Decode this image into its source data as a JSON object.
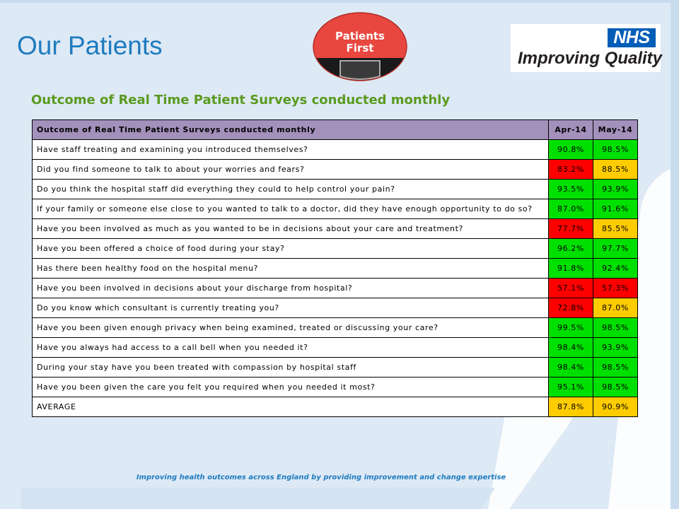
{
  "page": {
    "title": "Our Patients"
  },
  "logo": {
    "line1": "Patients",
    "line2": "First"
  },
  "nhs": {
    "badge": "NHS",
    "tagline": "Improving Quality"
  },
  "subtitle": "Outcome of Real Time Patient Surveys conducted monthly",
  "table": {
    "header": {
      "question": "Outcome of Real Time Patient Surveys conducted monthly",
      "col1": "Apr-14",
      "col2": "May-14"
    },
    "status_colors": {
      "green": "#00e000",
      "red": "#ff0000",
      "amber": "#ffcc00"
    },
    "rows": [
      {
        "question": "Have staff treating and examining you introduced themselves?",
        "apr": "90.8%",
        "apr_status": "green",
        "may": "98.5%",
        "may_status": "green"
      },
      {
        "question": "Did you find someone to talk to about your worries and fears?",
        "apr": "83.2%",
        "apr_status": "red",
        "may": "88.5%",
        "may_status": "amber"
      },
      {
        "question": "Do you think the hospital staff did everything they could to help control your pain?",
        "apr": "93.5%",
        "apr_status": "green",
        "may": "93.9%",
        "may_status": "green"
      },
      {
        "question": "If your family or someone else close to you wanted to talk to a doctor, did they have enough opportunity to do so?",
        "apr": "87.0%",
        "apr_status": "green",
        "may": "91.6%",
        "may_status": "green"
      },
      {
        "question": "Have you been involved as much as you wanted to be in decisions about your care and treatment?",
        "apr": "77.7%",
        "apr_status": "red",
        "may": "85.5%",
        "may_status": "amber"
      },
      {
        "question": "Have you been offered a choice of food during your stay?",
        "apr": "96.2%",
        "apr_status": "green",
        "may": "97.7%",
        "may_status": "green"
      },
      {
        "question": "Has there been healthy food on the hospital menu?",
        "apr": "91.8%",
        "apr_status": "green",
        "may": "92.4%",
        "may_status": "green"
      },
      {
        "question": "Have you been involved in decisions about your discharge from hospital?",
        "apr": "57.1%",
        "apr_status": "red",
        "may": "57.3%",
        "may_status": "red"
      },
      {
        "question": "Do you know which consultant is currently treating you?",
        "apr": "72.8%",
        "apr_status": "red",
        "may": "87.0%",
        "may_status": "amber"
      },
      {
        "question": "Have you been given enough privacy when being examined, treated or discussing your care?",
        "apr": "99.5%",
        "apr_status": "green",
        "may": "98.5%",
        "may_status": "green"
      },
      {
        "question": "Have you always had access to a call bell when you needed it?",
        "apr": "98.4%",
        "apr_status": "green",
        "may": "93.9%",
        "may_status": "green"
      },
      {
        "question": "During your stay have you been treated with compassion by hospital staff",
        "apr": "98.4%",
        "apr_status": "green",
        "may": "98.5%",
        "may_status": "green"
      },
      {
        "question": "Have you been given the care you felt you required when you needed it most?",
        "apr": "95.1%",
        "apr_status": "green",
        "may": "98.5%",
        "may_status": "green"
      },
      {
        "question": "AVERAGE",
        "apr": "87.8%",
        "apr_status": "amber",
        "may": "90.9%",
        "may_status": "amber"
      }
    ]
  },
  "footer": {
    "tagline": "Improving health outcomes across England by providing improvement and change expertise"
  }
}
